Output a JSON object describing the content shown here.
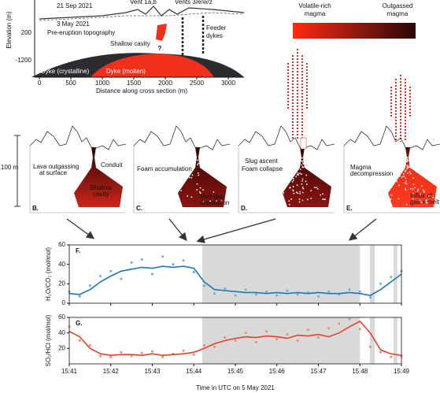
{
  "cross_section": {
    "y_label": "Elevation (m)",
    "yticks": [
      "200",
      "-1200"
    ],
    "x_label": "Distance along cross section (m)",
    "xticks": [
      0,
      500,
      1000,
      1500,
      2000,
      2500,
      3000
    ],
    "labels": [
      "21 Sep 2021",
      "Vent 1a,b",
      "Vents 3/e/w/z",
      "3 May 2021",
      "Pre-eruption topography",
      "Shallow cavity",
      "Feeder",
      "dykes",
      "?",
      "Dyke (crystalline)",
      "Dyke (molten)"
    ]
  },
  "colorbar": {
    "left": [
      "Volatile-rich",
      "magma"
    ],
    "right": [
      "Outgassed",
      "magma"
    ]
  },
  "scale_bar": "100 m",
  "panels": [
    {
      "letter": "B.",
      "notes": [
        "Lava outgassing",
        "at surface",
        "Conduit",
        "Shallow",
        "cavity"
      ]
    },
    {
      "letter": "C.",
      "notes": [
        "Foam accumulation",
        "Melt-gas",
        "separation"
      ]
    },
    {
      "letter": "D.",
      "notes": [
        "Slug ascent",
        "Foam collapse"
      ]
    },
    {
      "letter": "E.",
      "notes": [
        "Magma",
        "decompression",
        "Influx of",
        "gas + melt"
      ]
    }
  ],
  "chart_data": [
    {
      "type": "line",
      "panel": "F.",
      "y_label": "H₂O/CO₂ (mol/mol)",
      "x": [
        41,
        41.25,
        41.5,
        41.75,
        42,
        42.25,
        42.5,
        42.75,
        43,
        43.25,
        43.5,
        43.75,
        44,
        44.25,
        44.5,
        44.75,
        45,
        45.25,
        45.5,
        45.75,
        46,
        46.25,
        46.5,
        46.75,
        47,
        47.25,
        47.5,
        47.75,
        48,
        48.25,
        48.5,
        48.75,
        49
      ],
      "xlim": [
        41,
        49
      ],
      "xticks": [
        41,
        42,
        43,
        44,
        45,
        46,
        47,
        48,
        49
      ],
      "ylim": [
        0,
        60
      ],
      "yticks": [
        0,
        20,
        40,
        60
      ],
      "shaded": [
        [
          44.2,
          48
        ],
        [
          48.24,
          48.36
        ],
        [
          48.81,
          48.9
        ]
      ],
      "series": [
        {
          "style": "points",
          "color": "#6aaed6",
          "values": [
            12,
            7,
            18,
            28,
            33,
            25,
            42,
            45,
            30,
            48,
            40,
            44,
            32,
            18,
            10,
            15,
            8,
            14,
            9,
            12,
            8,
            13,
            9,
            11,
            7,
            12,
            9,
            14,
            12,
            6,
            20,
            27,
            33
          ]
        },
        {
          "style": "line",
          "color": "#1f77b4",
          "values": [
            10,
            9,
            14,
            22,
            28,
            33,
            35,
            37,
            36,
            38,
            37,
            38,
            36,
            22,
            14,
            13,
            12,
            11,
            11,
            10,
            11,
            10,
            11,
            10,
            11,
            10,
            10,
            11,
            10,
            8,
            14,
            22,
            30
          ]
        }
      ]
    },
    {
      "type": "line",
      "panel": "G.",
      "y_label": "SO₂/HCl (mol/mol)",
      "x_label": "Time in UTC on 5 May 2021",
      "x": [
        41,
        41.25,
        41.5,
        41.75,
        42,
        42.25,
        42.5,
        42.75,
        43,
        43.25,
        43.5,
        43.75,
        44,
        44.25,
        44.5,
        44.75,
        45,
        45.25,
        45.5,
        45.75,
        46,
        46.25,
        46.5,
        46.75,
        47,
        47.25,
        47.5,
        47.75,
        48,
        48.25,
        48.5,
        48.75,
        49
      ],
      "xlim": [
        41,
        49
      ],
      "xticks": [
        {
          "value": 41,
          "label": "15:41"
        },
        {
          "value": 42,
          "label": "15:42"
        },
        {
          "value": 43,
          "label": "15:43"
        },
        {
          "value": 44,
          "label": "15:44"
        },
        {
          "value": 45,
          "label": "15:45"
        },
        {
          "value": 46,
          "label": "15:46"
        },
        {
          "value": 47,
          "label": "15:47"
        },
        {
          "value": 48,
          "label": "15:48"
        },
        {
          "value": 49,
          "label": "15:49"
        }
      ],
      "ylim": [
        0,
        60
      ],
      "yticks": [
        20,
        40,
        60
      ],
      "shaded": [
        [
          44.2,
          48
        ],
        [
          48.24,
          48.36
        ],
        [
          48.81,
          48.9
        ]
      ],
      "series": [
        {
          "style": "points",
          "color": "#f08a6a",
          "values": [
            48,
            30,
            24,
            10,
            9,
            15,
            10,
            14,
            16,
            9,
            13,
            17,
            12,
            24,
            22,
            34,
            30,
            40,
            28,
            42,
            32,
            38,
            30,
            44,
            34,
            46,
            52,
            58,
            45,
            22,
            15,
            9,
            10
          ]
        },
        {
          "style": "line",
          "color": "#e8402a",
          "values": [
            42,
            35,
            20,
            13,
            11,
            12,
            12,
            11,
            13,
            11,
            12,
            13,
            15,
            20,
            26,
            30,
            33,
            35,
            34,
            36,
            35,
            33,
            37,
            36,
            38,
            35,
            40,
            48,
            55,
            40,
            18,
            13,
            11
          ]
        }
      ]
    }
  ]
}
